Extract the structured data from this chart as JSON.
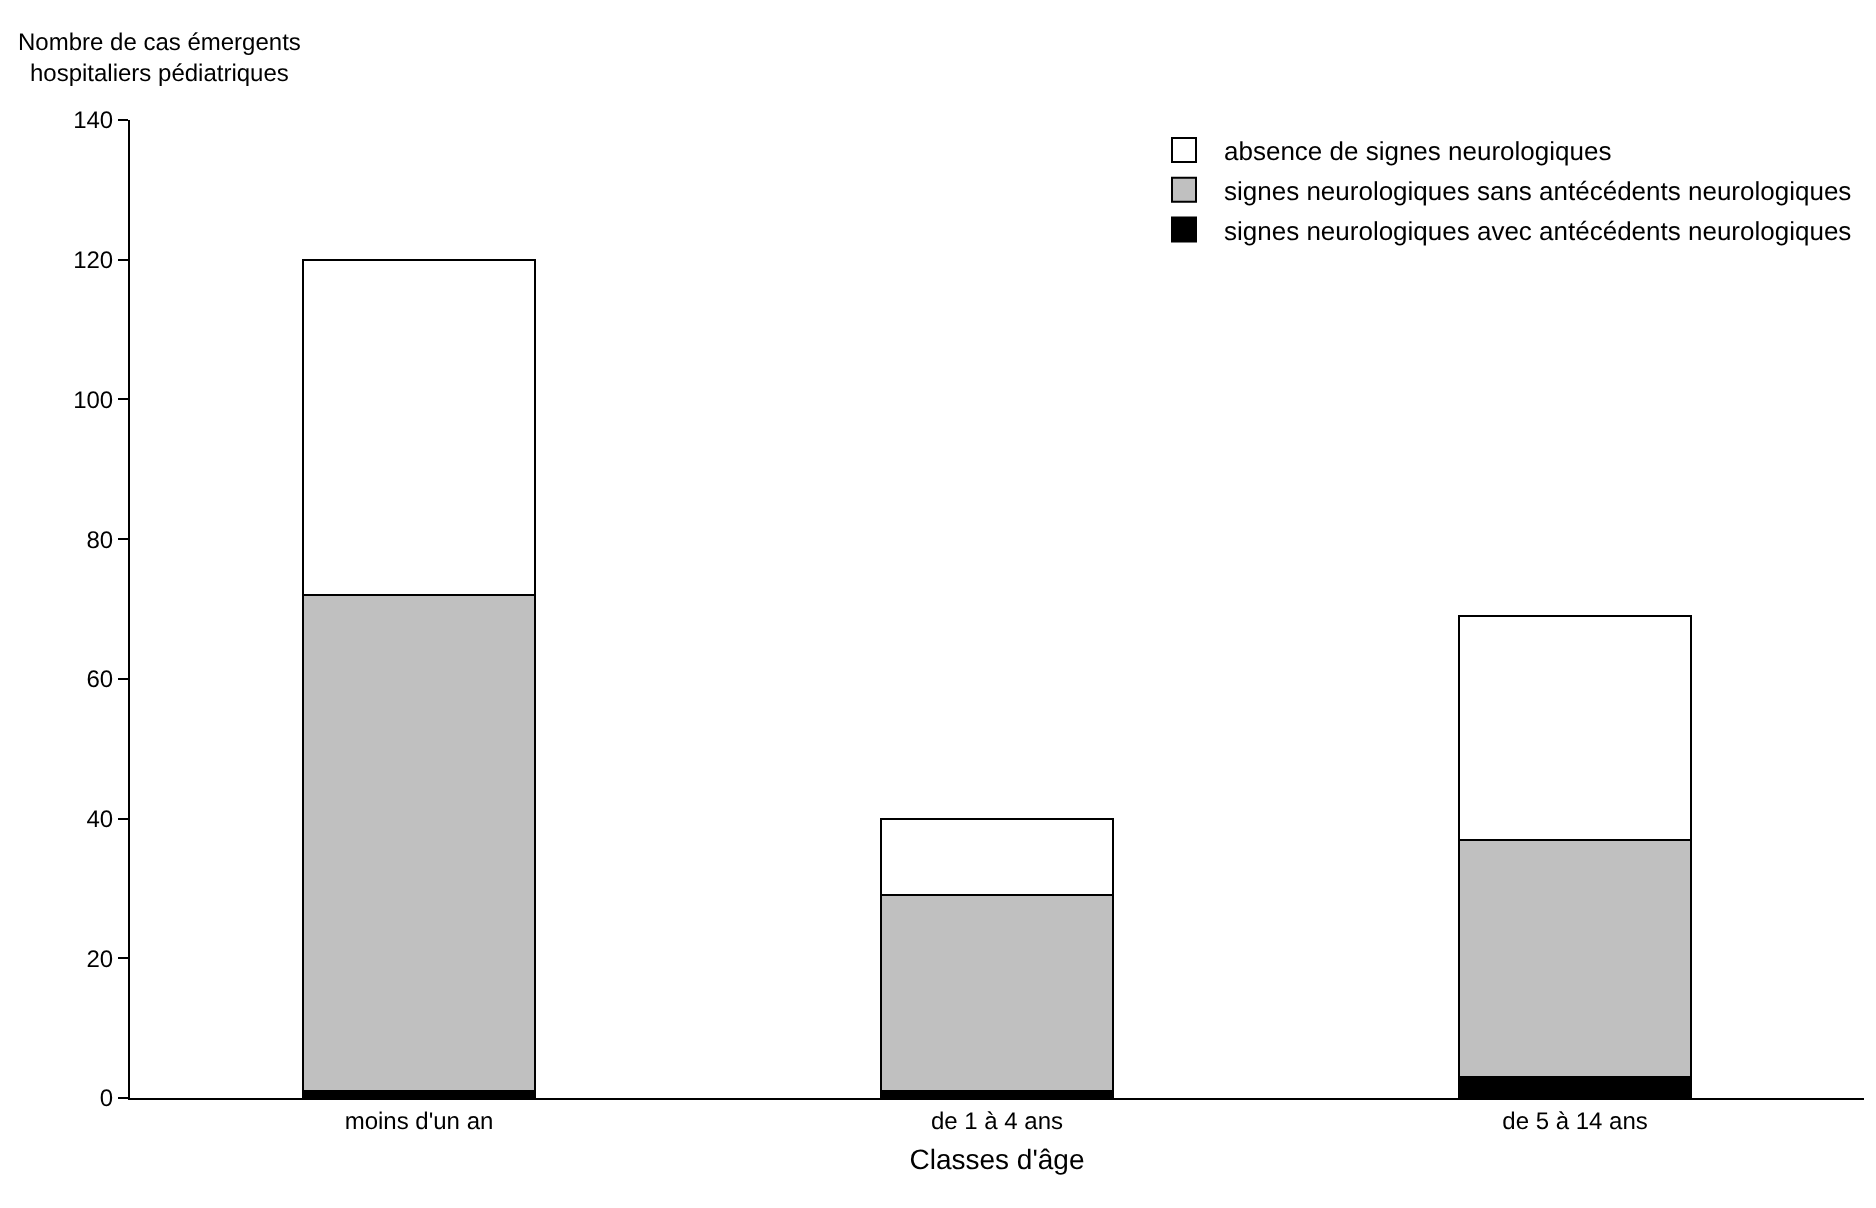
{
  "chart_data": {
    "type": "bar",
    "stacked": true,
    "xlabel": "Classes d'âge",
    "ylabel": "Nombre de cas émergents\nhospitaliers pédiatriques",
    "categories": [
      "moins d'un an",
      "de 1 à 4 ans",
      "de 5 à 14 ans"
    ],
    "series": [
      {
        "name": "signes neurologiques avec antécédents neurologiques",
        "color": "#000000",
        "values": [
          1,
          1,
          3
        ]
      },
      {
        "name": "signes neurologiques sans antécédents neurologiques",
        "color": "#c0c0c0",
        "values": [
          71,
          28,
          34
        ]
      },
      {
        "name": "absence de signes neurologiques",
        "color": "#ffffff",
        "values": [
          48,
          11,
          32
        ]
      }
    ],
    "ylim": [
      0,
      140
    ],
    "yticks": [
      0,
      20,
      40,
      60,
      80,
      100,
      120,
      140
    ],
    "grid": false,
    "legend": "top right"
  }
}
